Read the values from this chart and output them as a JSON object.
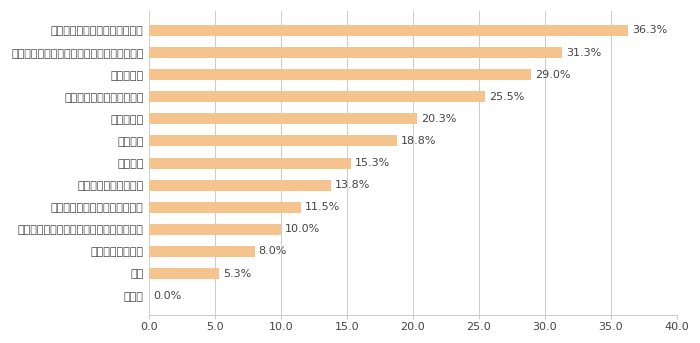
{
  "categories": [
    "その他",
    "飲酒",
    "早食いや暴飲暴食",
    "乳酸菌・ビフィズス菌が不足しているから",
    "辛いものや刺激的なものの摂取",
    "にんにくを食べたから",
    "野菜不足",
    "ストレス",
    "便秘／下痢",
    "食事のバランスが悪いため",
    "わからない",
    "肉類など動物性たんぱく質や脂肪の摂り過ぎ",
    "腸内の悪玉菌が増えているから"
  ],
  "values": [
    0.0,
    5.3,
    8.0,
    10.0,
    11.5,
    13.8,
    15.3,
    18.8,
    20.3,
    25.5,
    29.0,
    31.3,
    36.3
  ],
  "bar_color": "#F5C48E",
  "bar_edgecolor": "#F5C48E",
  "value_labels": [
    "0.0%",
    "5.3%",
    "8.0%",
    "10.0%",
    "11.5%",
    "13.8%",
    "15.3%",
    "18.8%",
    "20.3%",
    "25.5%",
    "29.0%",
    "31.3%",
    "36.3%"
  ],
  "xlim": [
    0,
    40
  ],
  "xticks": [
    0.0,
    5.0,
    10.0,
    15.0,
    20.0,
    25.0,
    30.0,
    35.0,
    40.0
  ],
  "background_color": "#ffffff",
  "grid_color": "#cccccc",
  "label_fontsize": 8.0,
  "value_fontsize": 8.0,
  "tick_fontsize": 8.0,
  "bar_height": 0.5
}
